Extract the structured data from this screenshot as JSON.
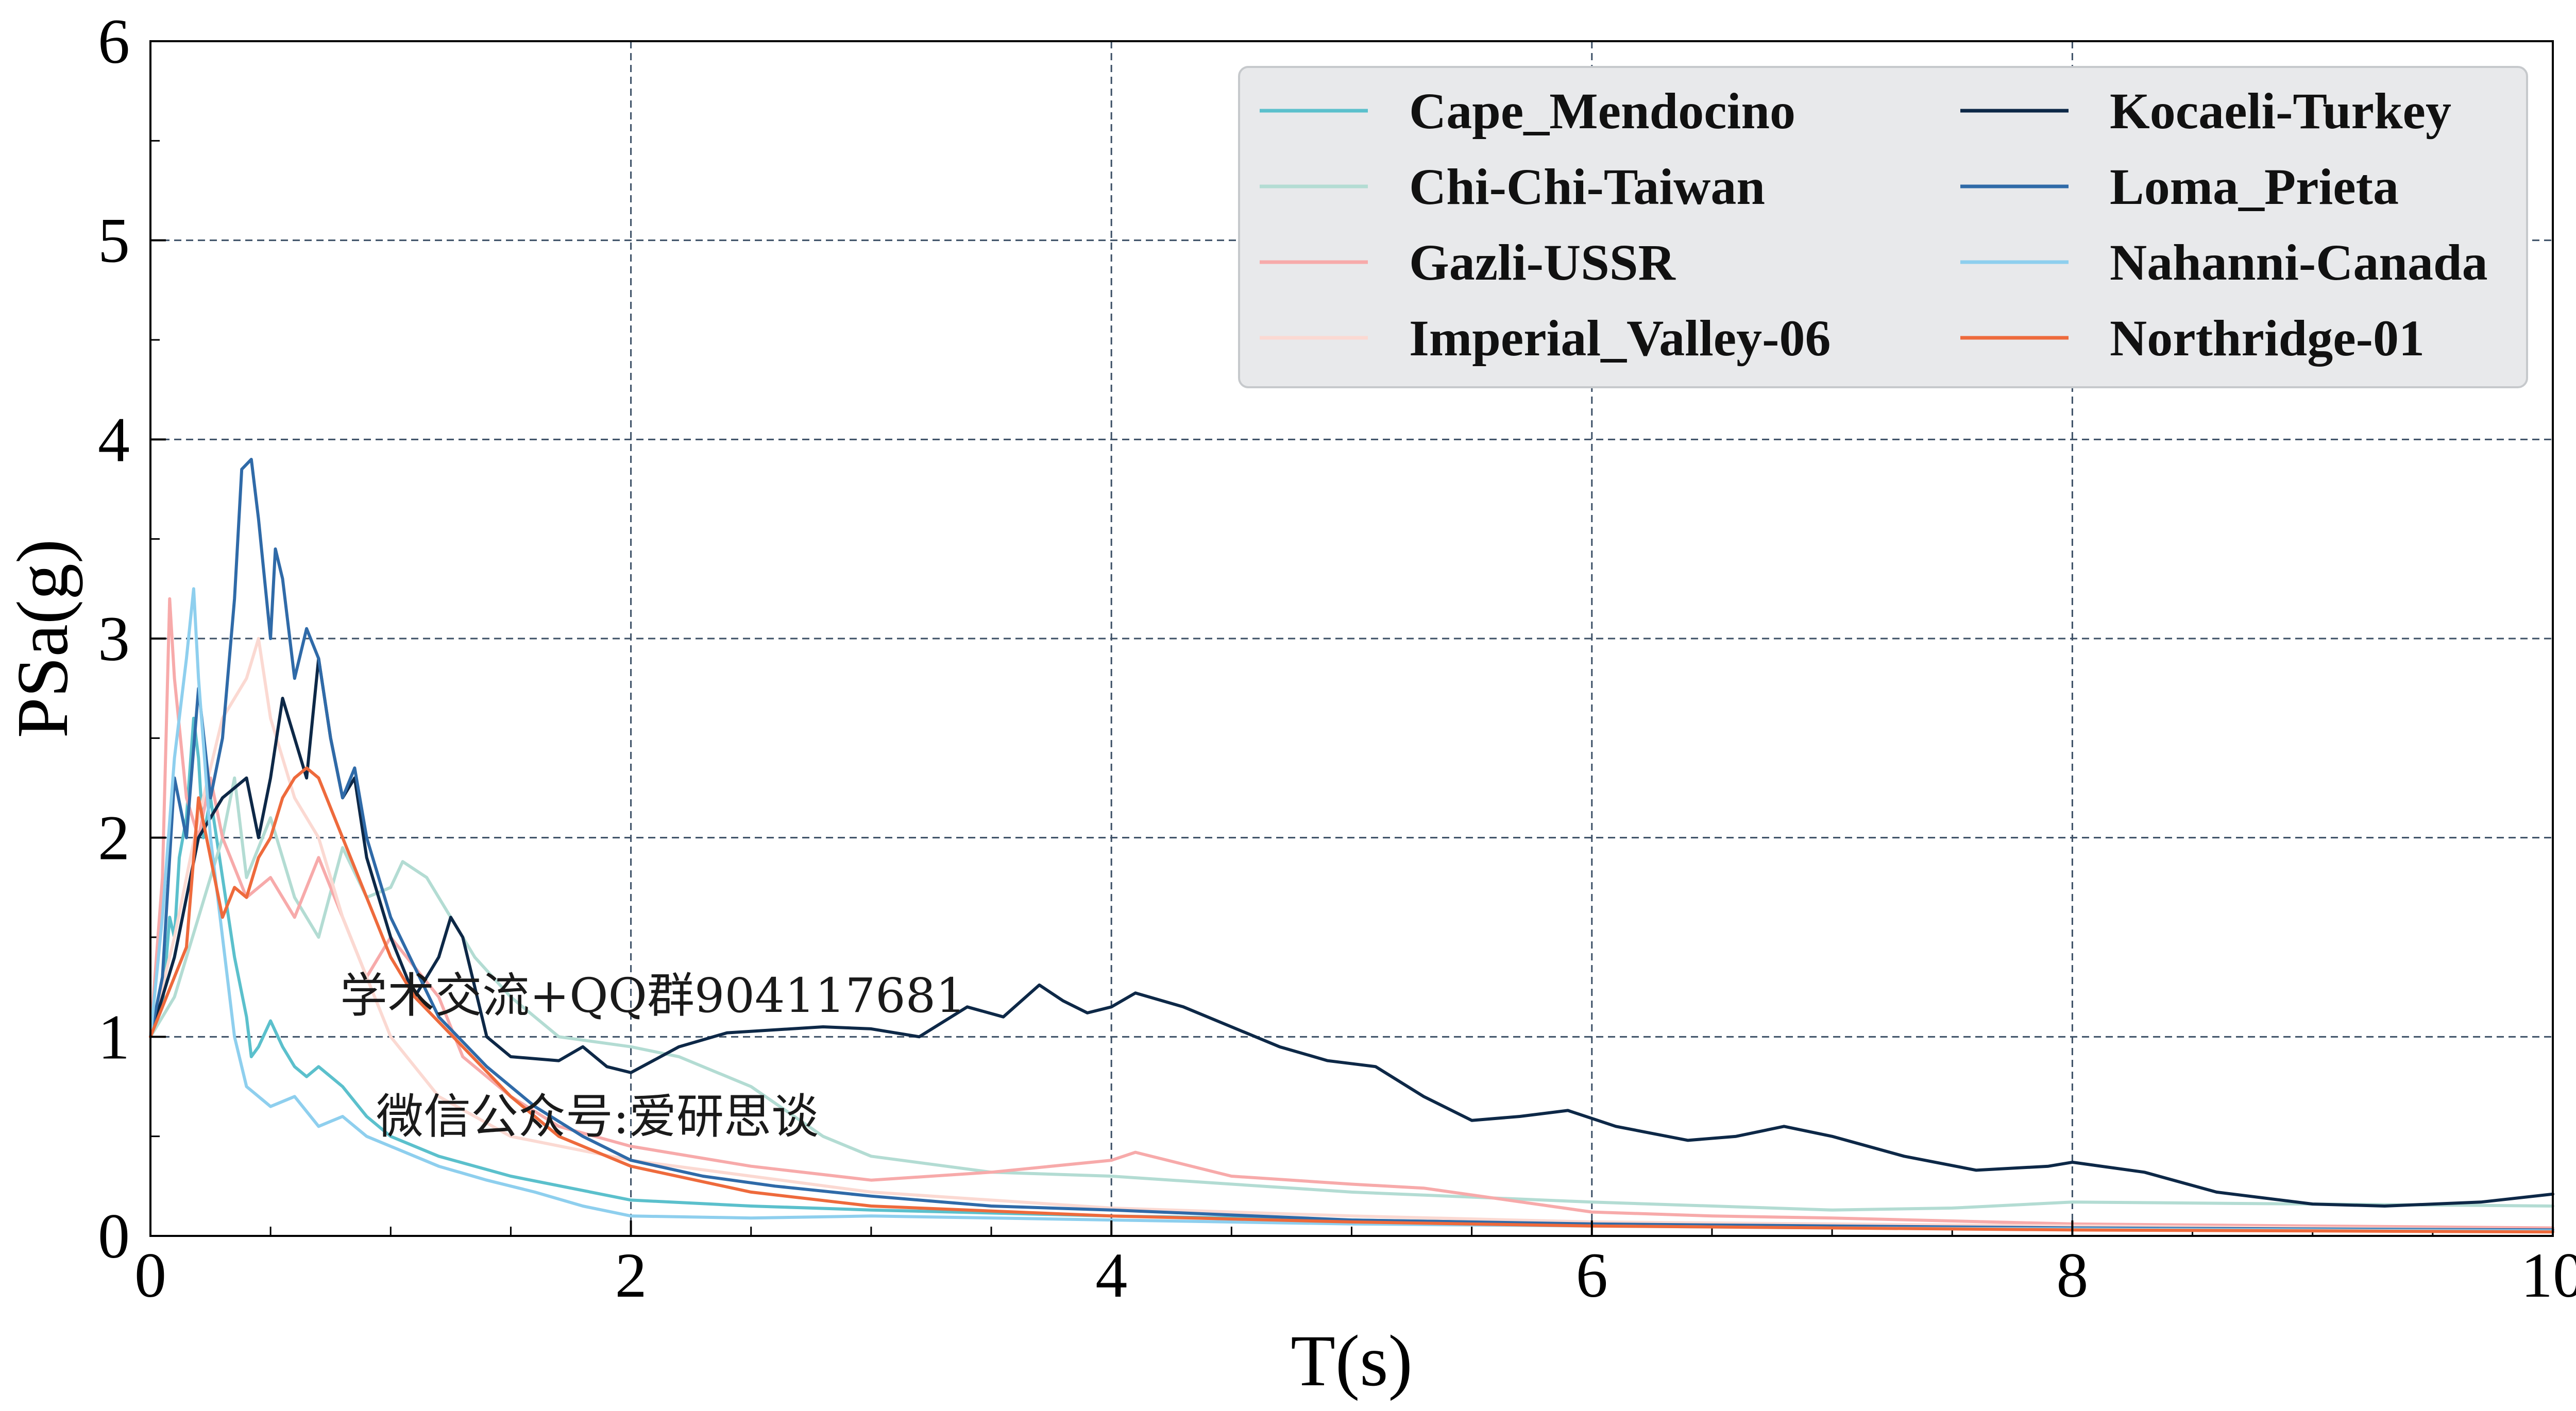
{
  "chart_data": {
    "type": "line",
    "xlabel": "T(s)",
    "ylabel": "PSa(g)",
    "xlim": [
      0,
      10
    ],
    "ylim": [
      0,
      6
    ],
    "x_ticks": [
      "0",
      "2",
      "4",
      "6",
      "8",
      "10"
    ],
    "y_ticks": [
      "0",
      "1",
      "2",
      "3",
      "4",
      "5",
      "6"
    ],
    "grid": true,
    "legend_position": "top-right",
    "legend_columns": 2,
    "annotations": [
      "学术交流+QQ群904117681",
      "微信公众号:爱研思谈"
    ],
    "series": [
      {
        "name": "Cape_Mendocino",
        "color": "#5bc0cc",
        "points": [
          [
            0,
            1.0
          ],
          [
            0.05,
            1.15
          ],
          [
            0.08,
            1.6
          ],
          [
            0.1,
            1.5
          ],
          [
            0.12,
            1.9
          ],
          [
            0.15,
            2.1
          ],
          [
            0.18,
            2.6
          ],
          [
            0.2,
            2.4
          ],
          [
            0.22,
            2.0
          ],
          [
            0.25,
            2.2
          ],
          [
            0.3,
            1.8
          ],
          [
            0.35,
            1.4
          ],
          [
            0.4,
            1.1
          ],
          [
            0.42,
            0.9
          ],
          [
            0.45,
            0.95
          ],
          [
            0.5,
            1.08
          ],
          [
            0.55,
            0.95
          ],
          [
            0.6,
            0.85
          ],
          [
            0.65,
            0.8
          ],
          [
            0.7,
            0.85
          ],
          [
            0.8,
            0.75
          ],
          [
            0.9,
            0.6
          ],
          [
            1.0,
            0.5
          ],
          [
            1.2,
            0.4
          ],
          [
            1.5,
            0.3
          ],
          [
            2.0,
            0.18
          ],
          [
            2.5,
            0.15
          ],
          [
            3.0,
            0.13
          ],
          [
            4.0,
            0.1
          ],
          [
            5.0,
            0.08
          ],
          [
            6.0,
            0.06
          ],
          [
            7.0,
            0.05
          ],
          [
            8.0,
            0.04
          ],
          [
            9.0,
            0.035
          ],
          [
            10.0,
            0.03
          ]
        ]
      },
      {
        "name": "Chi-Chi-Taiwan",
        "color": "#b3dcd3",
        "points": [
          [
            0,
            1.0
          ],
          [
            0.1,
            1.2
          ],
          [
            0.2,
            1.6
          ],
          [
            0.3,
            2.0
          ],
          [
            0.35,
            2.3
          ],
          [
            0.4,
            1.8
          ],
          [
            0.5,
            2.1
          ],
          [
            0.6,
            1.7
          ],
          [
            0.7,
            1.5
          ],
          [
            0.8,
            1.95
          ],
          [
            0.9,
            1.7
          ],
          [
            1.0,
            1.75
          ],
          [
            1.05,
            1.88
          ],
          [
            1.15,
            1.8
          ],
          [
            1.25,
            1.6
          ],
          [
            1.35,
            1.4
          ],
          [
            1.5,
            1.2
          ],
          [
            1.7,
            1.0
          ],
          [
            2.0,
            0.95
          ],
          [
            2.2,
            0.9
          ],
          [
            2.5,
            0.75
          ],
          [
            2.8,
            0.5
          ],
          [
            3.0,
            0.4
          ],
          [
            3.5,
            0.32
          ],
          [
            4.0,
            0.3
          ],
          [
            5.0,
            0.22
          ],
          [
            6.0,
            0.17
          ],
          [
            7.0,
            0.13
          ],
          [
            7.5,
            0.14
          ],
          [
            8.0,
            0.17
          ],
          [
            9.0,
            0.16
          ],
          [
            10.0,
            0.15
          ]
        ]
      },
      {
        "name": "Gazli-USSR",
        "color": "#f7aaaa",
        "points": [
          [
            0,
            1.0
          ],
          [
            0.05,
            1.8
          ],
          [
            0.08,
            3.2
          ],
          [
            0.1,
            2.8
          ],
          [
            0.15,
            2.2
          ],
          [
            0.2,
            2.0
          ],
          [
            0.25,
            2.3
          ],
          [
            0.3,
            2.0
          ],
          [
            0.4,
            1.7
          ],
          [
            0.5,
            1.8
          ],
          [
            0.6,
            1.6
          ],
          [
            0.7,
            1.9
          ],
          [
            0.8,
            1.6
          ],
          [
            0.9,
            1.3
          ],
          [
            1.0,
            1.5
          ],
          [
            1.1,
            1.35
          ],
          [
            1.2,
            1.2
          ],
          [
            1.3,
            0.9
          ],
          [
            1.5,
            0.7
          ],
          [
            1.7,
            0.55
          ],
          [
            2.0,
            0.45
          ],
          [
            2.5,
            0.35
          ],
          [
            3.0,
            0.28
          ],
          [
            3.5,
            0.32
          ],
          [
            4.0,
            0.38
          ],
          [
            4.1,
            0.42
          ],
          [
            4.5,
            0.3
          ],
          [
            5.0,
            0.26
          ],
          [
            5.3,
            0.24
          ],
          [
            6.0,
            0.12
          ],
          [
            6.5,
            0.1
          ],
          [
            7.0,
            0.09
          ],
          [
            8.0,
            0.06
          ],
          [
            9.0,
            0.05
          ],
          [
            10.0,
            0.04
          ]
        ]
      },
      {
        "name": "Imperial_Valley-06",
        "color": "#fbd9d2",
        "points": [
          [
            0,
            1.0
          ],
          [
            0.1,
            1.5
          ],
          [
            0.2,
            2.1
          ],
          [
            0.3,
            2.6
          ],
          [
            0.4,
            2.8
          ],
          [
            0.45,
            3.0
          ],
          [
            0.5,
            2.6
          ],
          [
            0.6,
            2.2
          ],
          [
            0.7,
            2.0
          ],
          [
            0.8,
            1.6
          ],
          [
            0.9,
            1.3
          ],
          [
            1.0,
            1.0
          ],
          [
            1.2,
            0.7
          ],
          [
            1.5,
            0.5
          ],
          [
            2.0,
            0.38
          ],
          [
            2.5,
            0.3
          ],
          [
            3.0,
            0.22
          ],
          [
            4.0,
            0.14
          ],
          [
            5.0,
            0.1
          ],
          [
            6.0,
            0.07
          ],
          [
            7.0,
            0.06
          ],
          [
            8.0,
            0.05
          ],
          [
            9.0,
            0.04
          ],
          [
            10.0,
            0.03
          ]
        ]
      },
      {
        "name": "Kocaeli-Turkey",
        "color": "#0d2847",
        "points": [
          [
            0,
            1.0
          ],
          [
            0.1,
            1.4
          ],
          [
            0.2,
            2.0
          ],
          [
            0.3,
            2.2
          ],
          [
            0.4,
            2.3
          ],
          [
            0.45,
            2.0
          ],
          [
            0.5,
            2.3
          ],
          [
            0.55,
            2.7
          ],
          [
            0.6,
            2.5
          ],
          [
            0.65,
            2.3
          ],
          [
            0.7,
            2.9
          ],
          [
            0.75,
            2.5
          ],
          [
            0.8,
            2.2
          ],
          [
            0.85,
            2.3
          ],
          [
            0.9,
            1.9
          ],
          [
            1.0,
            1.5
          ],
          [
            1.1,
            1.2
          ],
          [
            1.2,
            1.4
          ],
          [
            1.25,
            1.6
          ],
          [
            1.3,
            1.5
          ],
          [
            1.4,
            1.0
          ],
          [
            1.5,
            0.9
          ],
          [
            1.7,
            0.88
          ],
          [
            1.8,
            0.95
          ],
          [
            1.9,
            0.85
          ],
          [
            2.0,
            0.82
          ],
          [
            2.2,
            0.95
          ],
          [
            2.4,
            1.02
          ],
          [
            2.8,
            1.05
          ],
          [
            3.0,
            1.04
          ],
          [
            3.2,
            1.0
          ],
          [
            3.4,
            1.15
          ],
          [
            3.55,
            1.1
          ],
          [
            3.7,
            1.26
          ],
          [
            3.8,
            1.18
          ],
          [
            3.9,
            1.12
          ],
          [
            4.0,
            1.15
          ],
          [
            4.1,
            1.22
          ],
          [
            4.3,
            1.15
          ],
          [
            4.5,
            1.05
          ],
          [
            4.7,
            0.95
          ],
          [
            4.9,
            0.88
          ],
          [
            5.1,
            0.85
          ],
          [
            5.3,
            0.7
          ],
          [
            5.5,
            0.58
          ],
          [
            5.7,
            0.6
          ],
          [
            5.9,
            0.63
          ],
          [
            6.1,
            0.55
          ],
          [
            6.4,
            0.48
          ],
          [
            6.6,
            0.5
          ],
          [
            6.8,
            0.55
          ],
          [
            7.0,
            0.5
          ],
          [
            7.3,
            0.4
          ],
          [
            7.6,
            0.33
          ],
          [
            7.9,
            0.35
          ],
          [
            8.0,
            0.37
          ],
          [
            8.3,
            0.32
          ],
          [
            8.6,
            0.22
          ],
          [
            9.0,
            0.16
          ],
          [
            9.3,
            0.15
          ],
          [
            9.7,
            0.17
          ],
          [
            10.0,
            0.21
          ]
        ]
      },
      {
        "name": "Loma_Prieta",
        "color": "#2f6aa8",
        "points": [
          [
            0,
            1.0
          ],
          [
            0.05,
            1.3
          ],
          [
            0.1,
            2.3
          ],
          [
            0.15,
            2.0
          ],
          [
            0.2,
            2.75
          ],
          [
            0.25,
            2.2
          ],
          [
            0.3,
            2.5
          ],
          [
            0.35,
            3.2
          ],
          [
            0.38,
            3.85
          ],
          [
            0.42,
            3.9
          ],
          [
            0.45,
            3.6
          ],
          [
            0.5,
            3.0
          ],
          [
            0.52,
            3.45
          ],
          [
            0.55,
            3.3
          ],
          [
            0.6,
            2.8
          ],
          [
            0.65,
            3.05
          ],
          [
            0.7,
            2.9
          ],
          [
            0.75,
            2.5
          ],
          [
            0.8,
            2.2
          ],
          [
            0.85,
            2.35
          ],
          [
            0.9,
            2.0
          ],
          [
            1.0,
            1.6
          ],
          [
            1.2,
            1.1
          ],
          [
            1.4,
            0.85
          ],
          [
            1.6,
            0.65
          ],
          [
            1.8,
            0.5
          ],
          [
            2.0,
            0.38
          ],
          [
            2.3,
            0.3
          ],
          [
            2.6,
            0.25
          ],
          [
            3.0,
            0.2
          ],
          [
            3.5,
            0.15
          ],
          [
            4.0,
            0.13
          ],
          [
            5.0,
            0.08
          ],
          [
            6.0,
            0.06
          ],
          [
            7.0,
            0.05
          ],
          [
            8.0,
            0.04
          ],
          [
            9.0,
            0.035
          ],
          [
            10.0,
            0.03
          ]
        ]
      },
      {
        "name": "Nahanni-Canada",
        "color": "#8ecfee",
        "points": [
          [
            0,
            1.0
          ],
          [
            0.05,
            1.6
          ],
          [
            0.1,
            2.4
          ],
          [
            0.15,
            2.9
          ],
          [
            0.18,
            3.25
          ],
          [
            0.2,
            2.8
          ],
          [
            0.25,
            2.0
          ],
          [
            0.3,
            1.5
          ],
          [
            0.35,
            1.0
          ],
          [
            0.4,
            0.75
          ],
          [
            0.45,
            0.7
          ],
          [
            0.5,
            0.65
          ],
          [
            0.6,
            0.7
          ],
          [
            0.7,
            0.55
          ],
          [
            0.8,
            0.6
          ],
          [
            0.9,
            0.5
          ],
          [
            1.0,
            0.45
          ],
          [
            1.2,
            0.35
          ],
          [
            1.4,
            0.28
          ],
          [
            1.6,
            0.22
          ],
          [
            1.8,
            0.15
          ],
          [
            2.0,
            0.1
          ],
          [
            2.5,
            0.09
          ],
          [
            3.0,
            0.1
          ],
          [
            4.0,
            0.08
          ],
          [
            5.0,
            0.06
          ],
          [
            6.0,
            0.05
          ],
          [
            7.0,
            0.04
          ],
          [
            8.0,
            0.035
          ],
          [
            9.0,
            0.03
          ],
          [
            10.0,
            0.025
          ]
        ]
      },
      {
        "name": "Northridge-01",
        "color": "#ee6a3c",
        "points": [
          [
            0,
            1.0
          ],
          [
            0.1,
            1.3
          ],
          [
            0.15,
            1.45
          ],
          [
            0.2,
            2.2
          ],
          [
            0.25,
            1.9
          ],
          [
            0.3,
            1.6
          ],
          [
            0.35,
            1.75
          ],
          [
            0.4,
            1.7
          ],
          [
            0.45,
            1.9
          ],
          [
            0.5,
            2.0
          ],
          [
            0.55,
            2.2
          ],
          [
            0.6,
            2.3
          ],
          [
            0.65,
            2.35
          ],
          [
            0.7,
            2.3
          ],
          [
            0.8,
            2.0
          ],
          [
            0.9,
            1.7
          ],
          [
            1.0,
            1.4
          ],
          [
            1.1,
            1.2
          ],
          [
            1.3,
            0.95
          ],
          [
            1.5,
            0.7
          ],
          [
            1.7,
            0.5
          ],
          [
            2.0,
            0.35
          ],
          [
            2.5,
            0.22
          ],
          [
            3.0,
            0.15
          ],
          [
            4.0,
            0.1
          ],
          [
            5.0,
            0.07
          ],
          [
            6.0,
            0.05
          ],
          [
            7.0,
            0.04
          ],
          [
            8.0,
            0.03
          ],
          [
            9.0,
            0.025
          ],
          [
            10.0,
            0.02
          ]
        ]
      }
    ]
  }
}
